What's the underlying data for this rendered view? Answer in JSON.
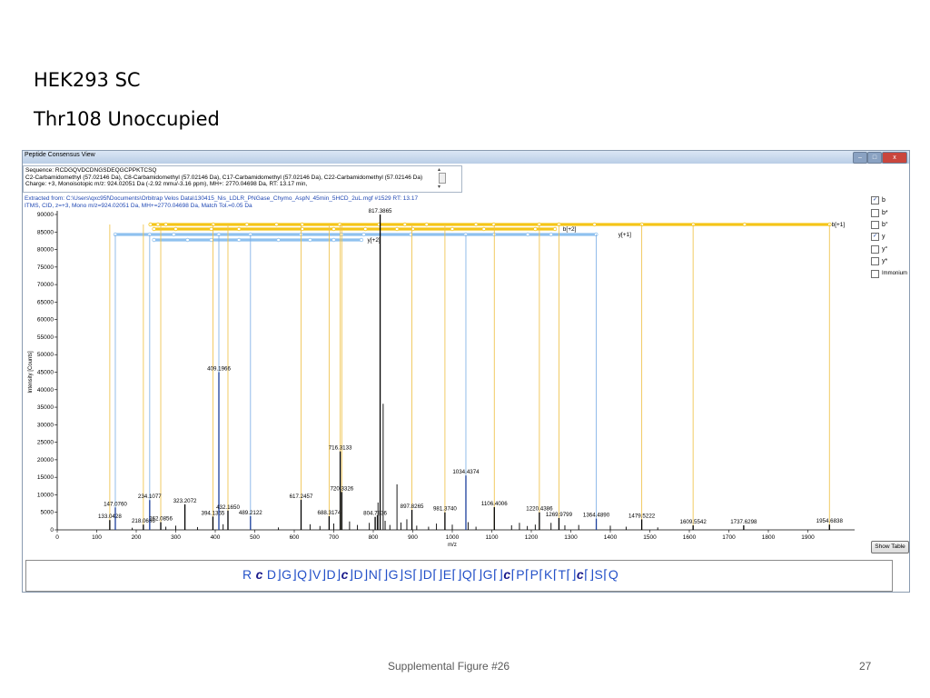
{
  "slide": {
    "title1": "HEK293 SC",
    "title2": "Thr108 Unoccupied",
    "footer": "Supplemental Figure #26",
    "page_number": "27"
  },
  "window": {
    "title": "Peptide Consensus View",
    "minimize_label": "–",
    "maximize_label": "□",
    "close_label": "x"
  },
  "info": {
    "line1": "Sequence: RCDGQVDCDNGSDEQGCPPKTCSQ",
    "line2": "C2-Carbamidomethyl (57.02146 Da), C8-Carbamidomethyl (57.02146 Da), C17-Carbamidomethyl (57.02146 Da), C22-Carbamidomethyl (57.02146 Da)",
    "line3": "Charge: +3,   Monoisotopic m/z: 924.02051 Da (-2.92 mmu/-3.16 ppm),   MH+: 2770.04698 Da,   RT: 13.17 min,"
  },
  "extract": {
    "line1": "Extracted from: C:\\Users\\qxc95f\\Documents\\Orbitrap Velos Data\\130415_Nis_LDLR_PNGase_Chymo_AspN_45min_5HCD_2uL.mgf  #1529  RT: 13.17",
    "line2": "ITMS, CID, z=+3, Mono m/z=924.02051 Da, MH+=2770.04698 Da, Match Tol.=0.05 Da"
  },
  "legend": {
    "items": [
      {
        "label": "b",
        "checked": true
      },
      {
        "label": "b*",
        "checked": false
      },
      {
        "label": "b°",
        "checked": false
      },
      {
        "label": "y",
        "checked": true
      },
      {
        "label": "y°",
        "checked": false
      },
      {
        "label": "y*",
        "checked": false
      },
      {
        "label": "Immonium",
        "checked": false
      }
    ],
    "check_mark": "✓"
  },
  "show_table_label": "Show Table",
  "sequence_display": {
    "tokens": [
      "R",
      "c",
      "D",
      "G",
      "Q",
      "V",
      "D",
      "c",
      "D",
      "N",
      "G",
      "S",
      "D",
      "E",
      "Q",
      "G",
      "c",
      "P",
      "P",
      "K",
      "T",
      "c",
      "S",
      "Q"
    ],
    "separators": [
      " ",
      "  ",
      "⌋",
      "⌋",
      "⌋",
      "⌋",
      "⌋",
      "⌋",
      "⌋",
      "⌈⌋",
      "⌋",
      "⌈⌋",
      "⌈⌋",
      "⌈⌋",
      "⌈⌋",
      "⌈⌋",
      "⌈",
      "⌈",
      "⌈",
      "⌈",
      "⌈⌋",
      "⌈⌋",
      "⌈",
      ""
    ]
  },
  "colors": {
    "b_ion": "#f5c518",
    "y_ion": "#8fc1ef",
    "b_line": "#f0c24a",
    "y_line": "#7fb1e6",
    "peak": "#000000",
    "y_peak": "#1b3f9c",
    "seq_text": "#2451c8"
  },
  "chart_data": {
    "type": "bar",
    "title": "",
    "xlabel": "m/z",
    "ylabel": "Intensity [Counts]",
    "xlim": [
      0,
      2000
    ],
    "ylim": [
      0,
      90000
    ],
    "x_ticks": [
      0,
      100,
      200,
      300,
      400,
      500,
      600,
      700,
      800,
      900,
      1000,
      1100,
      1200,
      1300,
      1400,
      1500,
      1600,
      1700,
      1800,
      1900
    ],
    "y_ticks": [
      0,
      5000,
      10000,
      15000,
      20000,
      25000,
      30000,
      35000,
      40000,
      45000,
      50000,
      55000,
      60000,
      65000,
      70000,
      75000,
      80000,
      85000,
      90000
    ],
    "peaks": [
      {
        "mz": 133.0428,
        "intensity": 2800,
        "label": "133.0428",
        "ion": "b"
      },
      {
        "mz": 147.076,
        "intensity": 6400,
        "label": "147.0760",
        "ion": "y"
      },
      {
        "mz": 218.0686,
        "intensity": 1500,
        "label": "218.0686",
        "ion": "b"
      },
      {
        "mz": 234.1077,
        "intensity": 8500,
        "label": "234.1077",
        "ion": "y"
      },
      {
        "mz": 262.0856,
        "intensity": 2200,
        "label": "262.0856",
        "ion": "b"
      },
      {
        "mz": 323.2072,
        "intensity": 7300,
        "label": "323.2072",
        "ion": "none"
      },
      {
        "mz": 394.1365,
        "intensity": 3800,
        "label": "394.1365",
        "ion": "b"
      },
      {
        "mz": 409.1966,
        "intensity": 45000,
        "label": "409.1966",
        "ion": "y"
      },
      {
        "mz": 432.165,
        "intensity": 5500,
        "label": "432.1650",
        "ion": "b"
      },
      {
        "mz": 489.2122,
        "intensity": 3900,
        "label": "489.2122",
        "ion": "y"
      },
      {
        "mz": 617.2457,
        "intensity": 8600,
        "label": "617.2457",
        "ion": "b"
      },
      {
        "mz": 688.3174,
        "intensity": 3900,
        "label": "688.3174",
        "ion": "b"
      },
      {
        "mz": 716.3133,
        "intensity": 22400,
        "label": "716.3133",
        "ion": "b"
      },
      {
        "mz": 720.3326,
        "intensity": 10800,
        "label": "720.3326",
        "ion": "b"
      },
      {
        "mz": 804.7836,
        "intensity": 3700,
        "label": "804.7836",
        "ion": "none"
      },
      {
        "mz": 817.3865,
        "intensity": 90000,
        "label": "817.3865",
        "ion": "none"
      },
      {
        "mz": 897.8265,
        "intensity": 5700,
        "label": "897.8265",
        "ion": "b"
      },
      {
        "mz": 981.374,
        "intensity": 5000,
        "label": "981.3740",
        "ion": "b"
      },
      {
        "mz": 1034.4374,
        "intensity": 15500,
        "label": "1034.4374",
        "ion": "y"
      },
      {
        "mz": 1106.4006,
        "intensity": 6500,
        "label": "1106.4006",
        "ion": "b"
      },
      {
        "mz": 1220.4386,
        "intensity": 5000,
        "label": "1220.4386",
        "ion": "b"
      },
      {
        "mz": 1269.9799,
        "intensity": 3400,
        "label": "1269.9799",
        "ion": "b"
      },
      {
        "mz": 1364.489,
        "intensity": 3200,
        "label": "1364.4890",
        "ion": "y"
      },
      {
        "mz": 1479.5222,
        "intensity": 3000,
        "label": "1479.5222",
        "ion": "b"
      },
      {
        "mz": 1609.5542,
        "intensity": 1300,
        "label": "1609.5542",
        "ion": "b"
      },
      {
        "mz": 1737.6298,
        "intensity": 1300,
        "label": "1737.6298",
        "ion": "none"
      },
      {
        "mz": 1954.6838,
        "intensity": 1500,
        "label": "1954.6838",
        "ion": "b"
      }
    ],
    "minor_peaks": [
      {
        "mz": 190,
        "intensity": 600
      },
      {
        "mz": 275,
        "intensity": 900
      },
      {
        "mz": 300,
        "intensity": 1200
      },
      {
        "mz": 355,
        "intensity": 800
      },
      {
        "mz": 420,
        "intensity": 1600
      },
      {
        "mz": 560,
        "intensity": 700
      },
      {
        "mz": 640,
        "intensity": 1600
      },
      {
        "mz": 665,
        "intensity": 1100
      },
      {
        "mz": 700,
        "intensity": 1800
      },
      {
        "mz": 740,
        "intensity": 2400
      },
      {
        "mz": 760,
        "intensity": 1400
      },
      {
        "mz": 790,
        "intensity": 2000
      },
      {
        "mz": 810,
        "intensity": 4200
      },
      {
        "mz": 812,
        "intensity": 7800
      },
      {
        "mz": 825,
        "intensity": 36000
      },
      {
        "mz": 830,
        "intensity": 2600
      },
      {
        "mz": 842,
        "intensity": 1400
      },
      {
        "mz": 860,
        "intensity": 13000
      },
      {
        "mz": 870,
        "intensity": 2100
      },
      {
        "mz": 885,
        "intensity": 3000
      },
      {
        "mz": 910,
        "intensity": 1200
      },
      {
        "mz": 940,
        "intensity": 900
      },
      {
        "mz": 960,
        "intensity": 1800
      },
      {
        "mz": 1000,
        "intensity": 1500
      },
      {
        "mz": 1040,
        "intensity": 2200
      },
      {
        "mz": 1060,
        "intensity": 900
      },
      {
        "mz": 1150,
        "intensity": 1300
      },
      {
        "mz": 1170,
        "intensity": 2000
      },
      {
        "mz": 1190,
        "intensity": 1100
      },
      {
        "mz": 1210,
        "intensity": 1500
      },
      {
        "mz": 1250,
        "intensity": 2000
      },
      {
        "mz": 1285,
        "intensity": 1300
      },
      {
        "mz": 1320,
        "intensity": 1400
      },
      {
        "mz": 1400,
        "intensity": 1200
      },
      {
        "mz": 1440,
        "intensity": 900
      },
      {
        "mz": 1520,
        "intensity": 700
      }
    ],
    "ion_series": [
      {
        "name": "b[+1]",
        "color": "#f5c518",
        "row": 1,
        "label_x": 1960,
        "breaks": [
          236,
          255,
          275,
          395,
          480,
          555,
          620,
          715,
          815,
          880,
          935,
          1060,
          1105,
          1220,
          1270,
          1360,
          1480,
          1610,
          1740,
          1955
        ]
      },
      {
        "name": "b[+2]",
        "color": "#f5c518",
        "row": 2,
        "label_x": 1280,
        "breaks": [
          245,
          300,
          390,
          460,
          620,
          700,
          780,
          860,
          900,
          1000,
          1080,
          1210,
          1260
        ]
      },
      {
        "name": "y[+1]",
        "color": "#8fc1ef",
        "row": 3,
        "label_x": 1420,
        "breaks": [
          147,
          234,
          295,
          409,
          489,
          617,
          720,
          776,
          895,
          1034,
          1106,
          1191,
          1250,
          1364
        ]
      },
      {
        "name": "y[+2]",
        "color": "#8fc1ef",
        "row": 4,
        "label_x": 785,
        "breaks": [
          245,
          330,
          390,
          460,
          560,
          640,
          700,
          770
        ]
      }
    ],
    "grid": false,
    "legend_position": "right"
  }
}
